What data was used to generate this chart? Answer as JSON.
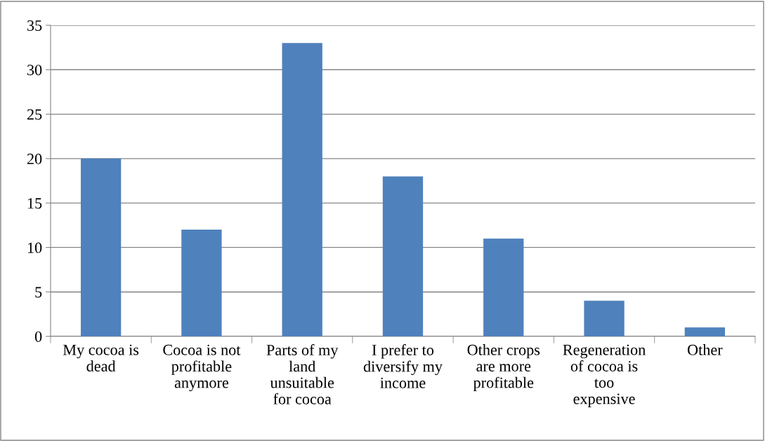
{
  "chart_data": {
    "type": "bar",
    "categories": [
      "My cocoa is dead",
      "Cocoa is not profitable anymore",
      "Parts of my land unsuitable for cocoa",
      "I prefer to diversify my income",
      "Other crops are more profitable",
      "Regeneration of cocoa is too expensive",
      "Other"
    ],
    "values": [
      20,
      12,
      33,
      18,
      11,
      4,
      1
    ],
    "color": "#4f81bd",
    "ylim": [
      0,
      35
    ],
    "yticks": [
      0,
      5,
      10,
      15,
      20,
      25,
      30,
      35
    ],
    "grid": "y",
    "legend": false
  }
}
